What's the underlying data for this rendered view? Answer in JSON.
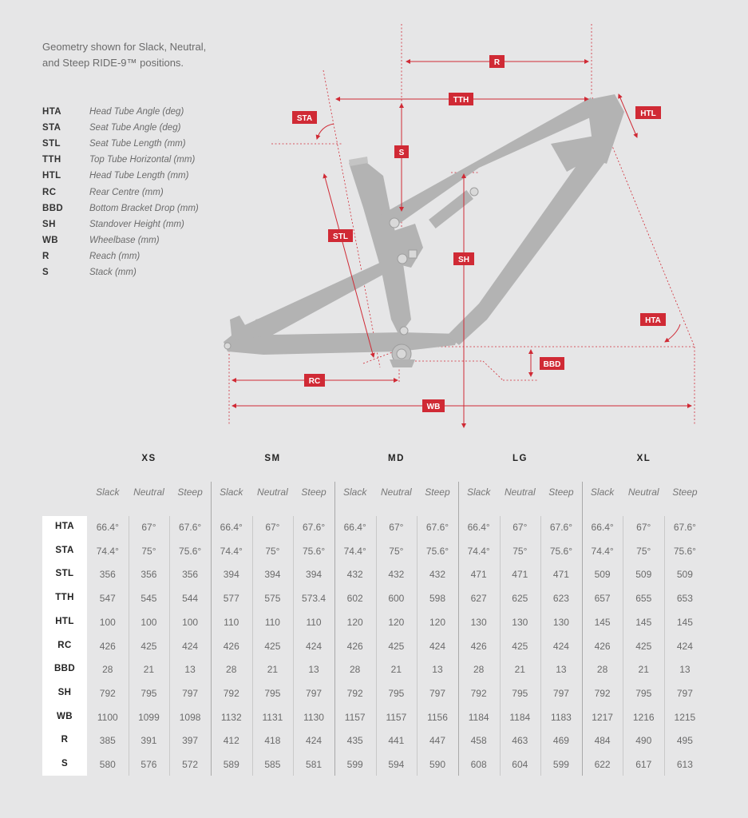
{
  "intro_text": [
    "Geometry shown for Slack, Neutral,",
    "and Steep RIDE-9™ positions."
  ],
  "legend": [
    {
      "abbr": "HTA",
      "desc": "Head Tube Angle (deg)"
    },
    {
      "abbr": "STA",
      "desc": "Seat Tube Angle (deg)"
    },
    {
      "abbr": "STL",
      "desc": "Seat Tube Length (mm)"
    },
    {
      "abbr": "TTH",
      "desc": "Top Tube Horizontal (mm)"
    },
    {
      "abbr": "HTL",
      "desc": "Head Tube Length (mm)"
    },
    {
      "abbr": "RC",
      "desc": "Rear Centre (mm)"
    },
    {
      "abbr": "BBD",
      "desc": "Bottom Bracket Drop (mm)"
    },
    {
      "abbr": "SH",
      "desc": "Standover Height (mm)"
    },
    {
      "abbr": "WB",
      "desc": "Wheelbase (mm)"
    },
    {
      "abbr": "R",
      "desc": "Reach (mm)"
    },
    {
      "abbr": "S",
      "desc": "Stack (mm)"
    }
  ],
  "diagram_tags": {
    "R": "R",
    "TTH": "TTH",
    "STA": "STA",
    "HTL": "HTL",
    "S": "S",
    "STL": "STL",
    "SH": "SH",
    "HTA": "HTA",
    "BBD": "BBD",
    "RC": "RC",
    "WB": "WB"
  },
  "colors": {
    "accent": "#d02a35",
    "frame": "#b3b3b3",
    "background": "#e6e6e7"
  },
  "table": {
    "sizes": [
      "XS",
      "SM",
      "MD",
      "LG",
      "XL"
    ],
    "positions": [
      "Slack",
      "Neutral",
      "Steep"
    ],
    "rows": [
      {
        "label": "HTA",
        "values": [
          "66.4°",
          "67°",
          "67.6°",
          "66.4°",
          "67°",
          "67.6°",
          "66.4°",
          "67°",
          "67.6°",
          "66.4°",
          "67°",
          "67.6°",
          "66.4°",
          "67°",
          "67.6°"
        ]
      },
      {
        "label": "STA",
        "values": [
          "74.4°",
          "75°",
          "75.6°",
          "74.4°",
          "75°",
          "75.6°",
          "74.4°",
          "75°",
          "75.6°",
          "74.4°",
          "75°",
          "75.6°",
          "74.4°",
          "75°",
          "75.6°"
        ]
      },
      {
        "label": "STL",
        "values": [
          "356",
          "356",
          "356",
          "394",
          "394",
          "394",
          "432",
          "432",
          "432",
          "471",
          "471",
          "471",
          "509",
          "509",
          "509"
        ]
      },
      {
        "label": "TTH",
        "values": [
          "547",
          "545",
          "544",
          "577",
          "575",
          "573.4",
          "602",
          "600",
          "598",
          "627",
          "625",
          "623",
          "657",
          "655",
          "653"
        ]
      },
      {
        "label": "HTL",
        "values": [
          "100",
          "100",
          "100",
          "110",
          "110",
          "110",
          "120",
          "120",
          "120",
          "130",
          "130",
          "130",
          "145",
          "145",
          "145"
        ]
      },
      {
        "label": "RC",
        "values": [
          "426",
          "425",
          "424",
          "426",
          "425",
          "424",
          "426",
          "425",
          "424",
          "426",
          "425",
          "424",
          "426",
          "425",
          "424"
        ]
      },
      {
        "label": "BBD",
        "values": [
          "28",
          "21",
          "13",
          "28",
          "21",
          "13",
          "28",
          "21",
          "13",
          "28",
          "21",
          "13",
          "28",
          "21",
          "13"
        ]
      },
      {
        "label": "SH",
        "values": [
          "792",
          "795",
          "797",
          "792",
          "795",
          "797",
          "792",
          "795",
          "797",
          "792",
          "795",
          "797",
          "792",
          "795",
          "797"
        ]
      },
      {
        "label": "WB",
        "values": [
          "1100",
          "1099",
          "1098",
          "1132",
          "1131",
          "1130",
          "1157",
          "1157",
          "1156",
          "1184",
          "1184",
          "1183",
          "1217",
          "1216",
          "1215"
        ]
      },
      {
        "label": "R",
        "values": [
          "385",
          "391",
          "397",
          "412",
          "418",
          "424",
          "435",
          "441",
          "447",
          "458",
          "463",
          "469",
          "484",
          "490",
          "495"
        ]
      },
      {
        "label": "S",
        "values": [
          "580",
          "576",
          "572",
          "589",
          "585",
          "581",
          "599",
          "594",
          "590",
          "608",
          "604",
          "599",
          "622",
          "617",
          "613"
        ]
      }
    ]
  }
}
